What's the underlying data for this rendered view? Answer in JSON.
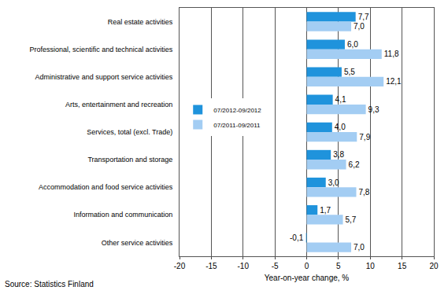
{
  "chart_data": {
    "type": "bar",
    "orientation": "horizontal",
    "categories": [
      "Real estate activities",
      "Professional, scientific and technical activities",
      "Administrative and support service activities",
      "Arts, entertainment and recreation",
      "Services, total (excl. Trade)",
      "Transportation and storage",
      "Accommodation and food service activities",
      "Information and communication",
      "Other service activities"
    ],
    "series": [
      {
        "name": "07/2012-09/2012",
        "color": "#1f93dc",
        "values": [
          7.7,
          6.0,
          5.5,
          4.1,
          4.0,
          3.8,
          3.0,
          1.7,
          -0.1
        ],
        "value_labels": [
          "7,7",
          "6,0",
          "5,5",
          "4,1",
          "4,0",
          "3,8",
          "3,0",
          "1,7",
          "-0,1"
        ]
      },
      {
        "name": "07/2011-09/2011",
        "color": "#a3cdf3",
        "values": [
          7.0,
          11.8,
          12.1,
          9.3,
          7.9,
          6.2,
          7.8,
          5.7,
          7.0
        ],
        "value_labels": [
          "7,0",
          "11,8",
          "12,1",
          "9,3",
          "7,9",
          "6,2",
          "7,8",
          "5,7",
          "7,0"
        ]
      }
    ],
    "x_label": "Year-on-year change, %",
    "xlim": [
      -20,
      20
    ],
    "xticks": [
      -20,
      -15,
      -10,
      -5,
      0,
      5,
      10,
      15,
      20
    ],
    "grid": true,
    "legend": "center left",
    "data_labels": true,
    "annotations": [
      "Source: Statistics Finland"
    ]
  }
}
